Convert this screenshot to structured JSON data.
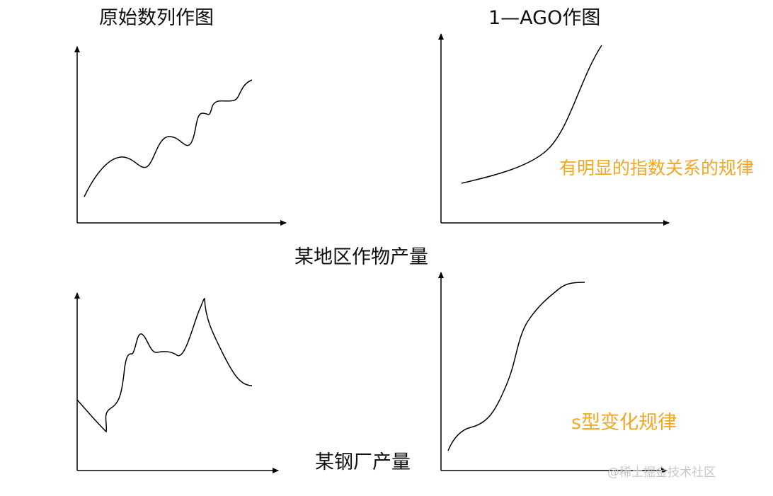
{
  "titles": {
    "original_plot": "原始数列作图",
    "ago_plot": "1—AGO作图",
    "exponential_note": "有明显的指数关系的规律",
    "crop_output": "某地区作物产量",
    "steel_output": "某钢厂产量",
    "s_curve_note": "s型变化规律"
  },
  "watermark": "@稀土掘金技术社区",
  "colors": {
    "axis": "#000000",
    "curve": "#000000",
    "annotation": "#f5a623",
    "watermark": "#c8c8c8"
  }
}
